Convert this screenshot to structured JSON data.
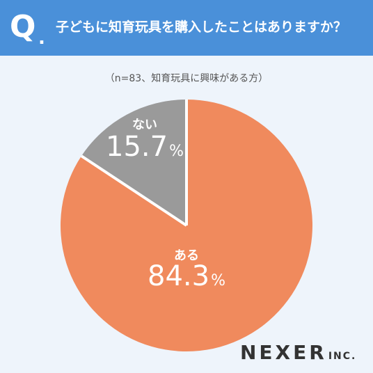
{
  "header": {
    "q_letter": "Q",
    "q_dot": ".",
    "question": "子どもに知育玩具を購入したことはありますか？"
  },
  "subtitle": "（n=83、知育玩具に興味がある方）",
  "chart_data": {
    "type": "pie",
    "start": "12 o'clock",
    "direction": "clockwise",
    "slices": [
      {
        "label": "ある",
        "value": 84.3,
        "value_text": "84.3",
        "unit": "%",
        "color": "#f08a5d"
      },
      {
        "label": "ない",
        "value": 15.7,
        "value_text": "15.7",
        "unit": "%",
        "color": "#9a9a9a"
      }
    ]
  },
  "logo": {
    "main": "NEXER",
    "suffix": "INC."
  },
  "colors": {
    "header": "#4a90d9",
    "background": "#eef4fb",
    "separator": "#ffffff"
  }
}
